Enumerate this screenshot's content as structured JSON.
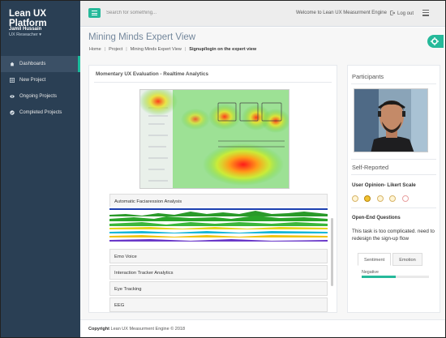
{
  "app": {
    "brand": "Lean UX Platform"
  },
  "user": {
    "name": "Jamil Hussain",
    "role": "UX Reseacher ▾"
  },
  "sidebar": {
    "items": [
      {
        "label": "Dashboards",
        "icon": "home-icon",
        "active": true
      },
      {
        "label": "New Project",
        "icon": "grid-icon",
        "active": false
      },
      {
        "label": "Ongoing Projects",
        "icon": "eye-icon",
        "active": false
      },
      {
        "label": "Completed Projects",
        "icon": "check-circle-icon",
        "active": false
      }
    ]
  },
  "topbar": {
    "search_placeholder": "Search for something...",
    "welcome": "Welcome to Lean UX Measurment Engine",
    "logout_label": "Log out"
  },
  "page": {
    "title": "Mining Minds Expert View",
    "breadcrumb": [
      "Home",
      "Project",
      "Mining Minds Expert View",
      "Signup/login on the expert view"
    ]
  },
  "realtime": {
    "title": "Momentary UX Evaluation - Realtime Analytics",
    "sections": [
      "Automatic Faciaression Analysis",
      "Emo Voice",
      "Interaction Tracker Analytics",
      "Eye Tracking",
      "EEG"
    ]
  },
  "participants": {
    "title": "Participants",
    "self_reported": "Self-Reported",
    "likert_label": "User Opinion- Likert Scale",
    "likert_selected_index": 1,
    "likert_count": 5,
    "open_end_label": "Open-End Questions",
    "open_end_text": "This task is too complicated. need to redesign the sign-up flow",
    "tabs": [
      "Sentiment",
      "Emotion"
    ],
    "sentiment_label": "Negative",
    "sentiment_fraction": 0.5
  },
  "footer": {
    "copyright_bold": "Copyright",
    "copyright_text": "Lean UX Measurment Engine © 2018"
  },
  "colors": {
    "sidebar": "#2a3f54",
    "accent": "#26b99a",
    "main_bg": "#f7f7f7"
  }
}
